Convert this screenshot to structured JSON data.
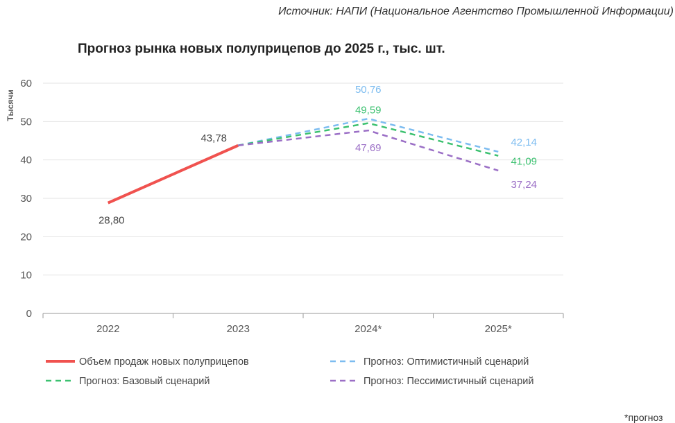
{
  "source": "Источник: НАПИ (Национальное Агентство Промышленной Информации)",
  "footnote": "*прогноз",
  "chart_data": {
    "type": "line",
    "title": "Прогноз рынка новых полуприцепов до 2025 г., тыс. шт.",
    "ylabel": "Тысячи",
    "xlabel": "",
    "ylim": [
      0,
      60
    ],
    "yticks": [
      "0",
      "10",
      "20",
      "30",
      "40",
      "50",
      "60"
    ],
    "categories": [
      "2022",
      "2023",
      "2024*",
      "2025*"
    ],
    "grid": true,
    "legend_position": "bottom",
    "series": [
      {
        "name": "Объем продаж новых полуприцепов",
        "color": "#f0524f",
        "dashed": false,
        "values": [
          28.8,
          43.78,
          null,
          null
        ],
        "labels": [
          "28,80",
          "43,78",
          null,
          null
        ]
      },
      {
        "name": "Прогноз: Оптимистичный сценарий",
        "color": "#7cbcf0",
        "dashed": true,
        "values": [
          null,
          43.78,
          50.76,
          42.14
        ],
        "labels": [
          null,
          null,
          "50,76",
          "42,14"
        ]
      },
      {
        "name": "Прогноз: Базовый сценарий",
        "color": "#3cc170",
        "dashed": true,
        "values": [
          null,
          43.78,
          49.59,
          41.09
        ],
        "labels": [
          null,
          null,
          "49,59",
          "41,09"
        ]
      },
      {
        "name": "Прогноз: Пессимистичный сценарий",
        "color": "#9b6fc6",
        "dashed": true,
        "values": [
          null,
          43.78,
          47.69,
          37.24
        ],
        "labels": [
          null,
          null,
          "47,69",
          "37,24"
        ]
      }
    ]
  }
}
